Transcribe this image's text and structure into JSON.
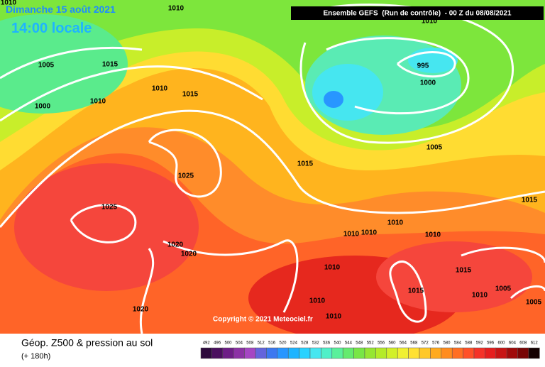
{
  "header": {
    "date": "Dimanche 15 août 2021",
    "time": "14:00 locale",
    "run": "Ensemble GEFS  (Run de contrôle)  - 00 Z du 08/08/2021"
  },
  "footer": {
    "title": "Géop. Z500 & pression au sol",
    "lead": "(+ 180h)"
  },
  "copyright": "Copyright © 2021 Meteociel.fr",
  "isobar_labels": [
    "1010",
    "1010",
    "1005",
    "1015",
    "1010",
    "1015",
    "1010",
    "1000",
    "995",
    "1000",
    "1005",
    "1015",
    "1025",
    "1025",
    "1015",
    "1020",
    "1020",
    "1010",
    "1010",
    "1010",
    "1010",
    "1010",
    "1015",
    "1015",
    "1005",
    "1010",
    "1020",
    "1010",
    "1010",
    "1005",
    "1010"
  ],
  "legend": {
    "ticks": [
      492,
      496,
      500,
      504,
      508,
      512,
      516,
      520,
      524,
      528,
      532,
      536,
      540,
      544,
      548,
      552,
      556,
      560,
      564,
      568,
      572,
      576,
      580,
      584,
      588,
      592,
      596,
      600,
      604,
      608,
      612
    ],
    "colors": [
      "#2d0a3c",
      "#4b0f5f",
      "#6e1e87",
      "#8c32a5",
      "#a546c3",
      "#6464dc",
      "#3c78f0",
      "#2896ff",
      "#1eb4ff",
      "#28d2ff",
      "#46e6f0",
      "#50f0c8",
      "#5af09b",
      "#64eb6e",
      "#78e646",
      "#96e632",
      "#b4eb28",
      "#d2f028",
      "#f0f032",
      "#ffe132",
      "#ffc828",
      "#ffaa1e",
      "#ff8c1e",
      "#ff6e23",
      "#ff5028",
      "#f53228",
      "#e61e1e",
      "#c81414",
      "#a00a0a",
      "#780505",
      "#140000"
    ]
  }
}
